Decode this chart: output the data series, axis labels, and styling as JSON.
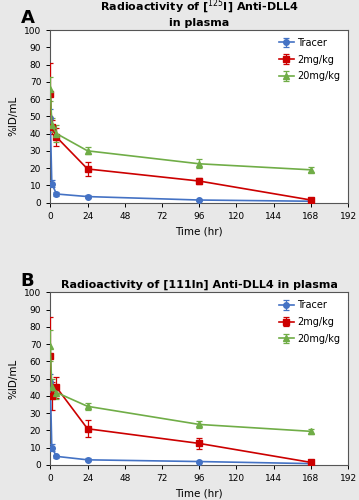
{
  "panel_A": {
    "title": "Radioactivity of [$^{125}$I] Anti-DLL4\nin plasma",
    "xlabel": "Time (hr)",
    "ylabel": "%ID/mL",
    "xlim": [
      0,
      192
    ],
    "ylim": [
      0,
      100
    ],
    "xticks": [
      0,
      24,
      48,
      72,
      96,
      120,
      144,
      168,
      192
    ],
    "yticks": [
      0,
      10,
      20,
      30,
      40,
      50,
      60,
      70,
      80,
      90,
      100
    ],
    "label": "A",
    "series": [
      {
        "name": "Tracer",
        "x": [
          0,
          1,
          4,
          24,
          96,
          168
        ],
        "y": [
          49,
          11,
          5,
          3.5,
          1.5,
          0.8
        ],
        "yerr": [
          5,
          2,
          1,
          0.8,
          0.5,
          0.3
        ],
        "color": "#4472C4",
        "marker": "o"
      },
      {
        "name": "2mg/kg",
        "x": [
          0,
          1,
          4,
          24,
          96,
          168
        ],
        "y": [
          63,
          44,
          38,
          19.5,
          12.5,
          1.5
        ],
        "yerr": [
          18,
          4,
          5,
          4,
          2,
          0.5
        ],
        "color": "#CC0000",
        "marker": "s"
      },
      {
        "name": "20mg/kg",
        "x": [
          0,
          1,
          4,
          24,
          96,
          168
        ],
        "y": [
          66,
          45,
          40,
          30,
          22.5,
          19
        ],
        "yerr": [
          7,
          4,
          5,
          2,
          2.5,
          1.5
        ],
        "color": "#70AD47",
        "marker": "^"
      }
    ]
  },
  "panel_B": {
    "title": "Radioactivity of [111In] Anti-DLL4 in plasma",
    "xlabel": "Time (hr)",
    "ylabel": "%ID/mL",
    "xlim": [
      0,
      192
    ],
    "ylim": [
      0,
      100
    ],
    "xticks": [
      0,
      24,
      48,
      72,
      96,
      120,
      144,
      168,
      192
    ],
    "yticks": [
      0,
      10,
      20,
      30,
      40,
      50,
      60,
      70,
      80,
      90,
      100
    ],
    "label": "B",
    "series": [
      {
        "name": "Tracer",
        "x": [
          0,
          1,
          4,
          24,
          96,
          168
        ],
        "y": [
          48,
          10,
          5,
          3,
          2,
          0.8
        ],
        "yerr": [
          5,
          2,
          1,
          0.8,
          0.5,
          0.3
        ],
        "color": "#4472C4",
        "marker": "o"
      },
      {
        "name": "2mg/kg",
        "x": [
          0,
          1,
          4,
          24,
          96,
          168
        ],
        "y": [
          63,
          40,
          45,
          21,
          12.5,
          1.5
        ],
        "yerr": [
          23,
          8,
          6,
          5,
          3,
          0.5
        ],
        "color": "#CC0000",
        "marker": "s"
      },
      {
        "name": "20mg/kg",
        "x": [
          0,
          1,
          4,
          24,
          96,
          168
        ],
        "y": [
          69,
          45,
          42,
          34,
          23.5,
          19.5
        ],
        "yerr": [
          9,
          5,
          4,
          2,
          2,
          1.5
        ],
        "color": "#70AD47",
        "marker": "^"
      }
    ]
  },
  "fig_bg_color": "#e8e8e8",
  "panel_bg_color": "#ffffff",
  "border_color": "#aaaaaa"
}
